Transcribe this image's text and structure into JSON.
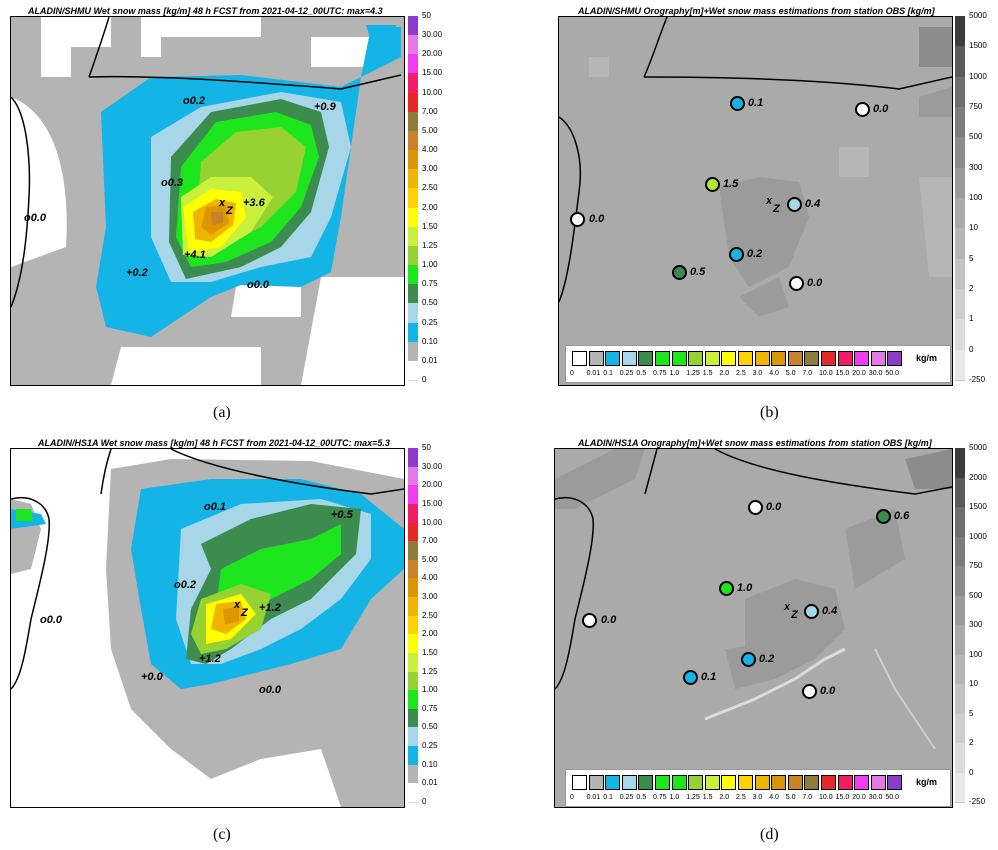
{
  "panels": {
    "a": {
      "title": "ALADIN/SHMU Wet snow mass [kg/m] 48 h FCST from 2021-04-12_00UTC: max=4.3",
      "caption": "(a)",
      "labels": {
        "o02": "0.2",
        "p09": "+0.9",
        "o03": "0.3",
        "p36": "+3.6",
        "o00w": "0.0",
        "p41": "+4.1",
        "p02": "+0.2",
        "o00s": "0.0",
        "x": "x",
        "z": "Z"
      }
    },
    "b": {
      "title": "ALADIN/SHMU Orography[m]+Wet snow mass estimations from station OBS [kg/m]",
      "caption": "(b)",
      "stations": [
        {
          "value": "0.1",
          "color": "#14b4e6"
        },
        {
          "value": "0.0",
          "color": "#ffffff"
        },
        {
          "value": "1.5",
          "color": "#b4e632"
        },
        {
          "value": "0.4",
          "color": "#a6d6e8"
        },
        {
          "value": "0.0",
          "color": "#ffffff"
        },
        {
          "value": "0.2",
          "color": "#14b4e6"
        },
        {
          "value": "0.5",
          "color": "#3c8c50"
        },
        {
          "value": "0.0",
          "color": "#ffffff"
        }
      ],
      "x": "x",
      "z": "Z"
    },
    "c": {
      "title": "ALADIN/HS1A Wet snow mass [kg/m] 48 h FCST from 2021-04-12_00UTC: max=5.3",
      "caption": "(c)",
      "labels": {
        "o01": "0.1",
        "p05": "+0.5",
        "o02": "0.2",
        "p12a": "+1.2",
        "o00w": "0.0",
        "p12b": "+1.2",
        "p00": "+0.0",
        "o00s": "0.0",
        "x": "x",
        "z": "Z"
      }
    },
    "d": {
      "title": "ALADIN/HS1A Orography[m]+Wet snow mass estimations from station OBS [kg/m]",
      "caption": "(d)",
      "stations": [
        {
          "value": "0.0",
          "color": "#ffffff"
        },
        {
          "value": "0.6",
          "color": "#3c8c50"
        },
        {
          "value": "1.0",
          "color": "#1ee61e"
        },
        {
          "value": "0.4",
          "color": "#a6d6e8"
        },
        {
          "value": "0.0",
          "color": "#ffffff"
        },
        {
          "value": "0.2",
          "color": "#14b4e6"
        },
        {
          "value": "0.1",
          "color": "#14b4e6"
        },
        {
          "value": "0.0",
          "color": "#ffffff"
        }
      ],
      "x": "x",
      "z": "Z"
    }
  },
  "snow_scale": {
    "ticks": [
      "50",
      "30.00",
      "20.00",
      "15.00",
      "10.00",
      "7.00",
      "5.00",
      "4.00",
      "3.00",
      "2.50",
      "2.00",
      "1.50",
      "1.25",
      "1.00",
      "0.75",
      "0.50",
      "0.25",
      "0.10",
      "0.01",
      "0"
    ],
    "colors": [
      "#8c3cc8",
      "#e678e6",
      "#f03cf0",
      "#f01e64",
      "#e62828",
      "#8c7d3c",
      "#c88228",
      "#dc9600",
      "#f0b400",
      "#ffd200",
      "#ffff00",
      "#c8f03c",
      "#96d232",
      "#1ee61e",
      "#3c8c50",
      "#a6d6e8",
      "#14b4e6",
      "#b4b4b4",
      "#ffffff"
    ]
  },
  "oro_scale_b": {
    "ticks": [
      "5000",
      "1500",
      "1000",
      "750",
      "500",
      "300",
      "100",
      "10",
      "5",
      "2",
      "1",
      "0",
      "-250"
    ],
    "colors": [
      "#3c3c3c",
      "#5a5a5a",
      "#6e6e6e",
      "#7d7d7d",
      "#8c8c8c",
      "#9b9b9b",
      "#aaaaaa",
      "#b6b6b6",
      "#c3c3c3",
      "#cfcfcf",
      "#dcdcdc",
      "#e8e8e8"
    ]
  },
  "oro_scale_d": {
    "ticks": [
      "5000",
      "2000",
      "1500",
      "1000",
      "750",
      "500",
      "300",
      "100",
      "10",
      "5",
      "2",
      "0",
      "-250"
    ],
    "colors": [
      "#3c3c3c",
      "#5a5a5a",
      "#6e6e6e",
      "#7d7d7d",
      "#8c8c8c",
      "#9b9b9b",
      "#aaaaaa",
      "#b6b6b6",
      "#c3c3c3",
      "#cfcfcf",
      "#dcdcdc",
      "#e8e8e8"
    ]
  },
  "hscale": {
    "ticks": [
      "0",
      "0.01",
      "0.1",
      "0.25",
      "0.5",
      "0.75",
      "1.0",
      "1.25",
      "1.5",
      "2.0",
      "2.5",
      "3.0",
      "4.0",
      "5.0",
      "7.0",
      "10.0",
      "15.0",
      "20.0",
      "30.0",
      "50.0"
    ],
    "colors": [
      "#ffffff",
      "#b4b4b4",
      "#14b4e6",
      "#a6d6e8",
      "#3c8c50",
      "#1ee61e",
      "#1ee61e",
      "#96d232",
      "#c8f03c",
      "#ffff00",
      "#ffd200",
      "#f0b400",
      "#dc9600",
      "#c88228",
      "#8c7d3c",
      "#e62828",
      "#f01e64",
      "#f03cf0",
      "#e678e6",
      "#8c3cc8"
    ],
    "unit": "kg/m"
  }
}
